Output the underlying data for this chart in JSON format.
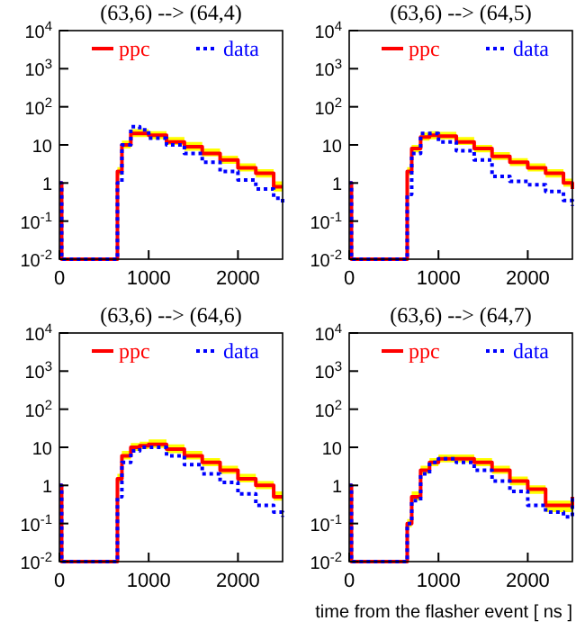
{
  "chart_data": [
    {
      "type": "step",
      "title": "(63,6) --> (64,4)",
      "x": [
        0,
        25,
        600,
        650,
        700,
        800,
        900,
        1000,
        1200,
        1400,
        1600,
        1800,
        2000,
        2200,
        2400,
        2500
      ],
      "log": "y",
      "xlim": [
        0,
        2500
      ],
      "xticks": [
        0,
        1000,
        2000
      ],
      "ylim": [
        0.01,
        10000
      ],
      "yticks": [
        {
          "value": 0.01,
          "label": "10$^{-2}$"
        },
        {
          "value": 0.1,
          "label": "10$^{-1}$"
        },
        {
          "value": 1,
          "label": "1"
        },
        {
          "value": 10,
          "label": "10"
        },
        {
          "value": 100,
          "label": "10$^{2}$"
        },
        {
          "value": 1000,
          "label": "10$^{3}$"
        },
        {
          "value": 10000,
          "label": "10$^{4}$"
        }
      ],
      "legend": "top",
      "grid": false,
      "marker": "none",
      "series": [
        {
          "name": "ppc",
          "color": "#ff0000",
          "line_style": "solid",
          "values": [
            1,
            0.01,
            0.01,
            2,
            10,
            20,
            20,
            18,
            12,
            9,
            6,
            4,
            2.5,
            1.8,
            0.8,
            0.8
          ],
          "lower": [
            1,
            0.01,
            0.01,
            1.6,
            8,
            16,
            16,
            14,
            10,
            7,
            5,
            3.2,
            2,
            1.4,
            0.6,
            0.6
          ],
          "upper": [
            1,
            0.01,
            0.01,
            2.6,
            13,
            26,
            26,
            23,
            16,
            12,
            8,
            5.2,
            3.3,
            2.3,
            1.1,
            1.1
          ]
        },
        {
          "name": "data",
          "color": "#0000ff",
          "line_style": "dotted",
          "values": [
            1,
            0.01,
            0.01,
            1,
            10,
            30,
            25,
            15,
            10,
            6,
            3.5,
            2,
            1.2,
            0.7,
            0.4,
            0.3
          ]
        }
      ]
    },
    {
      "type": "step",
      "title": "(63,6) --> (64,5)",
      "x": [
        0,
        25,
        600,
        650,
        700,
        800,
        900,
        1000,
        1200,
        1400,
        1600,
        1800,
        2000,
        2200,
        2400,
        2500
      ],
      "log": "y",
      "xlim": [
        0,
        2500
      ],
      "xticks": [
        0,
        1000,
        2000
      ],
      "ylim": [
        0.01,
        10000
      ],
      "yticks": [
        {
          "value": 0.01,
          "label": "10$^{-2}$"
        },
        {
          "value": 0.1,
          "label": "10$^{-1}$"
        },
        {
          "value": 1,
          "label": "1"
        },
        {
          "value": 10,
          "label": "10"
        },
        {
          "value": 100,
          "label": "10$^{2}$"
        },
        {
          "value": 1000,
          "label": "10$^{3}$"
        },
        {
          "value": 10000,
          "label": "10$^{4}$"
        }
      ],
      "legend": "top",
      "grid": false,
      "marker": "none",
      "series": [
        {
          "name": "ppc",
          "color": "#ff0000",
          "line_style": "solid",
          "values": [
            1,
            0.01,
            0.01,
            2,
            8,
            16,
            18,
            17,
            12,
            8,
            5,
            3.5,
            2.5,
            1.8,
            1,
            0.7
          ],
          "lower": [
            1,
            0.01,
            0.01,
            1.6,
            6.4,
            13,
            14,
            14,
            10,
            6.4,
            4,
            2.8,
            2,
            1.4,
            0.8,
            0.56
          ],
          "upper": [
            1,
            0.01,
            0.01,
            2.6,
            10,
            21,
            23,
            22,
            16,
            10,
            6.5,
            4.5,
            3.3,
            2.3,
            1.3,
            0.9
          ]
        },
        {
          "name": "data",
          "color": "#0000ff",
          "line_style": "dotted",
          "values": [
            1,
            0.01,
            0.01,
            0.5,
            6,
            20,
            20,
            12,
            7,
            4,
            1.5,
            1.1,
            0.9,
            0.6,
            0.35,
            0.25
          ]
        }
      ]
    },
    {
      "type": "step",
      "title": "(63,6) --> (64,6)",
      "x": [
        0,
        25,
        600,
        650,
        700,
        800,
        900,
        1000,
        1200,
        1400,
        1600,
        1800,
        2000,
        2200,
        2400,
        2500
      ],
      "log": "y",
      "xlim": [
        0,
        2500
      ],
      "xticks": [
        0,
        1000,
        2000
      ],
      "ylim": [
        0.01,
        10000
      ],
      "yticks": [
        {
          "value": 0.01,
          "label": "10$^{-2}$"
        },
        {
          "value": 0.1,
          "label": "10$^{-1}$"
        },
        {
          "value": 1,
          "label": "1"
        },
        {
          "value": 10,
          "label": "10"
        },
        {
          "value": 100,
          "label": "10$^{2}$"
        },
        {
          "value": 1000,
          "label": "10$^{3}$"
        },
        {
          "value": 10000,
          "label": "10$^{4}$"
        }
      ],
      "legend": "top",
      "grid": false,
      "marker": "none",
      "series": [
        {
          "name": "ppc",
          "color": "#ff0000",
          "line_style": "solid",
          "values": [
            1,
            0.01,
            0.01,
            1.5,
            6,
            10,
            11,
            12,
            9,
            6,
            4,
            2.5,
            1.5,
            1,
            0.5,
            0.5
          ],
          "lower": [
            1,
            0.01,
            0.01,
            1.2,
            4.8,
            8,
            9,
            9.6,
            7,
            4.8,
            3.2,
            2,
            1.2,
            0.8,
            0.4,
            0.4
          ],
          "upper": [
            1,
            0.01,
            0.01,
            2,
            8,
            13,
            14,
            16,
            12,
            8,
            5.2,
            3.3,
            2,
            1.3,
            0.7,
            0.7
          ]
        },
        {
          "name": "data",
          "color": "#0000ff",
          "line_style": "dotted",
          "values": [
            1,
            0.01,
            0.01,
            0.5,
            4,
            8,
            10,
            10,
            6,
            3.5,
            2,
            1.2,
            0.6,
            0.3,
            0.2,
            0.15
          ]
        }
      ]
    },
    {
      "type": "step",
      "title": "(63,6) --> (64,7)",
      "xlabel": "time from the flasher event [ ns ]",
      "x": [
        0,
        25,
        600,
        650,
        700,
        800,
        900,
        1000,
        1200,
        1400,
        1600,
        1800,
        2000,
        2200,
        2400,
        2500
      ],
      "log": "y",
      "xlim": [
        0,
        2500
      ],
      "xticks": [
        0,
        1000,
        2000
      ],
      "ylim": [
        0.01,
        10000
      ],
      "yticks": [
        {
          "value": 0.01,
          "label": "10$^{-2}$"
        },
        {
          "value": 0.1,
          "label": "10$^{-1}$"
        },
        {
          "value": 1,
          "label": "1"
        },
        {
          "value": 10,
          "label": "10"
        },
        {
          "value": 100,
          "label": "10$^{2}$"
        },
        {
          "value": 1000,
          "label": "10$^{3}$"
        },
        {
          "value": 10000,
          "label": "10$^{4}$"
        }
      ],
      "legend": "top",
      "grid": false,
      "marker": "none",
      "series": [
        {
          "name": "ppc",
          "color": "#ff0000",
          "line_style": "solid",
          "values": [
            1,
            0.01,
            0.01,
            0.1,
            0.5,
            2.5,
            4,
            5,
            5,
            4,
            2.5,
            1.3,
            0.8,
            0.3,
            0.3,
            0.5
          ],
          "lower": [
            1,
            0.01,
            0.01,
            0.08,
            0.4,
            2,
            3.2,
            4,
            4,
            3.2,
            2,
            1,
            0.6,
            0.2,
            0.2,
            0.4
          ],
          "upper": [
            1,
            0.01,
            0.01,
            0.13,
            0.7,
            3.3,
            5.2,
            6.5,
            6.5,
            5.2,
            3.3,
            1.7,
            1,
            0.4,
            0.4,
            0.7
          ]
        },
        {
          "name": "data",
          "color": "#0000ff",
          "line_style": "dotted",
          "values": [
            1,
            0.01,
            0.01,
            0.1,
            0.4,
            2,
            4,
            5,
            4,
            2.5,
            1.3,
            0.7,
            0.3,
            0.2,
            0.15,
            0.5
          ]
        }
      ]
    }
  ]
}
